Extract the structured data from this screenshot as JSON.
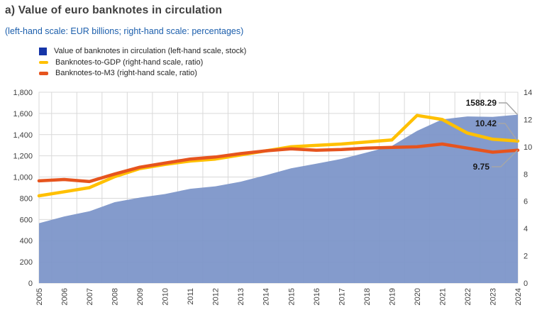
{
  "header": {
    "title": "a) Value of euro banknotes in circulation",
    "subtitle": "(left-hand scale: EUR billions; right-hand scale: percentages)"
  },
  "legend": [
    {
      "label": "Value of banknotes in circulation (left-hand scale, stock)",
      "marker": "square",
      "color": "#1535a8"
    },
    {
      "label": "Banknotes-to-GDP (right-hand scale, ratio)",
      "marker": "dash",
      "color": "#ffc000"
    },
    {
      "label": "Banknotes-to-M3 (right-hand scale, ratio)",
      "marker": "dash",
      "color": "#e6541e"
    }
  ],
  "chart_data": {
    "type": "area",
    "title": "a) Value of euro banknotes in circulation",
    "subtitle": "(left-hand scale: EUR billions; right-hand scale: percentages)",
    "x": [
      2005,
      2006,
      2007,
      2008,
      2009,
      2010,
      2011,
      2012,
      2013,
      2014,
      2015,
      2016,
      2017,
      2018,
      2019,
      2020,
      2021,
      2022,
      2023,
      2024
    ],
    "x_tick_labels": [
      "2005",
      "2006",
      "2007",
      "2008",
      "2009",
      "2010",
      "2011",
      "2012",
      "2013",
      "2014",
      "2015",
      "2016",
      "2017",
      "2018",
      "2019",
      "2020",
      "2021",
      "2022",
      "2023",
      "2024"
    ],
    "series": [
      {
        "name": "Value of banknotes in circulation (left-hand scale, stock)",
        "type": "area",
        "axis": "left",
        "color": "#7d96c9",
        "values": [
          565,
          628,
          677,
          763,
          806,
          840,
          889,
          913,
          956,
          1017,
          1083,
          1126,
          1171,
          1231,
          1293,
          1435,
          1544,
          1572,
          1568,
          1588.29
        ]
      },
      {
        "name": "Banknotes-to-GDP (right-hand scale, ratio)",
        "type": "line",
        "axis": "right",
        "color": "#ffc000",
        "values": [
          6.4,
          6.7,
          7.0,
          7.8,
          8.4,
          8.7,
          8.95,
          9.1,
          9.4,
          9.7,
          10.0,
          10.1,
          10.2,
          10.35,
          10.5,
          12.3,
          12.0,
          11.0,
          10.55,
          10.42
        ]
      },
      {
        "name": "Banknotes-to-M3 (right-hand scale, ratio)",
        "type": "line",
        "axis": "right",
        "color": "#e6541e",
        "values": [
          7.5,
          7.6,
          7.45,
          8.0,
          8.5,
          8.8,
          9.1,
          9.25,
          9.5,
          9.7,
          9.85,
          9.75,
          9.8,
          9.9,
          9.95,
          10.0,
          10.2,
          9.9,
          9.6,
          9.75
        ]
      }
    ],
    "left_axis": {
      "min": 0,
      "max": 1800,
      "step": 200,
      "tick_labels": [
        "0",
        "200",
        "400",
        "600",
        "800",
        "1,000",
        "1,200",
        "1,400",
        "1,600",
        "1,800"
      ]
    },
    "right_axis": {
      "min": 0,
      "max": 14,
      "step": 2,
      "tick_labels": [
        "0",
        "2",
        "4",
        "6",
        "8",
        "10",
        "12",
        "14"
      ]
    },
    "grid": true,
    "legend_position": "top-left",
    "annotations": [
      {
        "text": "1588.29",
        "series": 0
      },
      {
        "text": "10.42",
        "series": 1
      },
      {
        "text": "9.75",
        "series": 2
      }
    ],
    "colors": {
      "grid": "#d9d9d9",
      "axis_text": "#404040",
      "annotation_text": "#1a1a1a",
      "callout_line": "#a6a6a6"
    }
  }
}
